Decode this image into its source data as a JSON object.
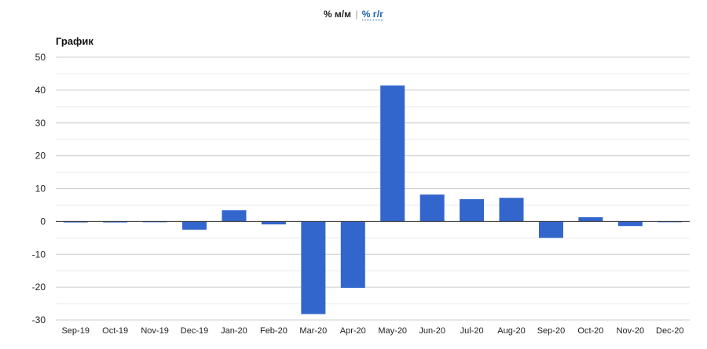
{
  "toggle": {
    "mm_label": "% м/м",
    "separator": "|",
    "yy_label": "% г/г"
  },
  "chart_title": "График",
  "chart_data": {
    "type": "bar",
    "title": "График",
    "xlabel": "",
    "ylabel": "",
    "ylim": [
      -30,
      50
    ],
    "yticks": [
      50,
      40,
      30,
      20,
      10,
      0,
      -10,
      -20,
      -30
    ],
    "grid": true,
    "bar_color": "#3366cc",
    "categories": [
      "Sep-19",
      "Oct-19",
      "Nov-19",
      "Dec-19",
      "Jan-20",
      "Feb-20",
      "Mar-20",
      "Apr-20",
      "May-20",
      "Jun-20",
      "Jul-20",
      "Aug-20",
      "Sep-20",
      "Oct-20",
      "Nov-20",
      "Dec-20"
    ],
    "values": [
      -0.3,
      -0.3,
      0,
      -2.5,
      3.4,
      -0.9,
      -28.2,
      -20.2,
      41.4,
      8.2,
      6.8,
      7.2,
      -5.0,
      1.3,
      -1.4,
      -0.2
    ]
  }
}
